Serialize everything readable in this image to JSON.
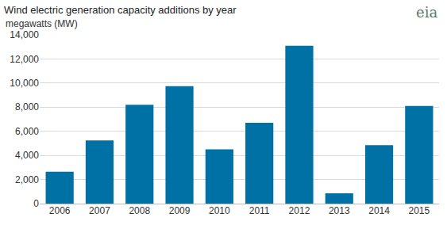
{
  "chart_data": {
    "type": "bar",
    "title": "Wind electric generation capacity additions by year",
    "subtitle": "megawatts (MW)",
    "annotations": [
      "eia"
    ],
    "categories": [
      "2006",
      "2007",
      "2008",
      "2009",
      "2010",
      "2011",
      "2012",
      "2013",
      "2014",
      "2015"
    ],
    "values": [
      2650,
      5250,
      8200,
      9750,
      4500,
      6700,
      13100,
      850,
      4850,
      8100
    ],
    "color": "#0071a4",
    "ylim": [
      0,
      14000
    ],
    "yticks": [
      0,
      {
        "value": 2000,
        "label": "2,000"
      },
      {
        "value": 4000,
        "label": "4,000"
      },
      {
        "value": 6000,
        "label": "6,000"
      },
      {
        "value": 8000,
        "label": "8,000"
      },
      {
        "value": 10000,
        "label": "10,000"
      },
      {
        "value": 12000,
        "label": "12,000"
      },
      {
        "value": 14000,
        "label": "14,000"
      }
    ],
    "grid": true
  }
}
